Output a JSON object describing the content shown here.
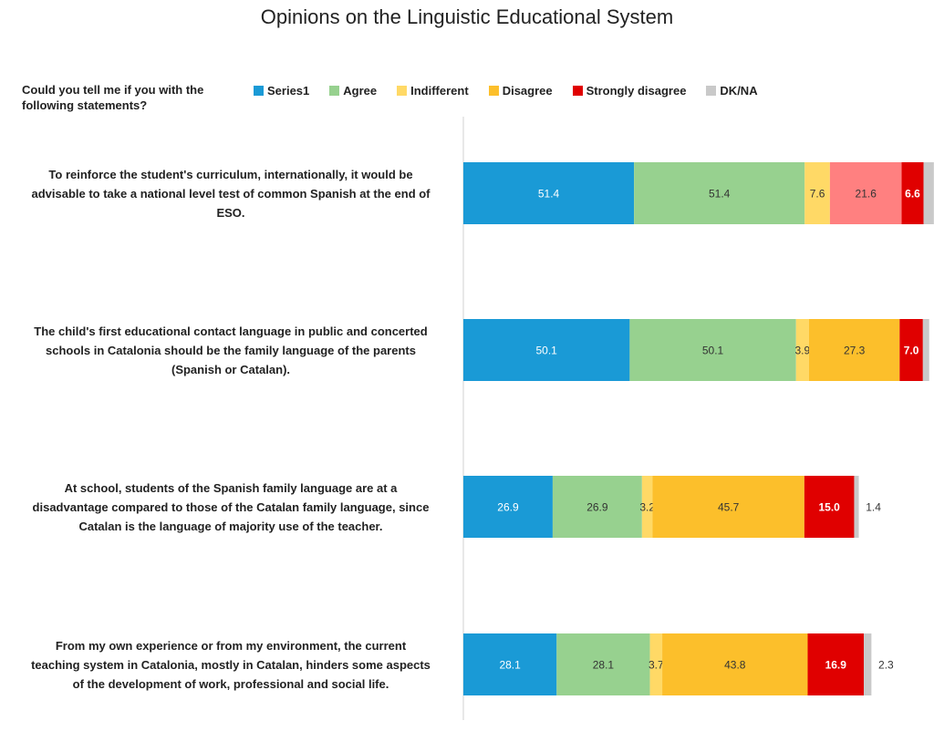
{
  "chart_data": {
    "type": "bar",
    "orientation": "horizontal",
    "stacked": true,
    "title": "Opinions on the Linguistic Educational System",
    "question": "Could you tell me if you with the following statements?",
    "legend_position": "top",
    "categories": [
      "To reinforce the student's curriculum, internationally, it would be advisable to take a national level test of common Spanish at the end of ESO.",
      "The child's first educational contact language in public and concerted schools in Catalonia should be the family language of the parents (Spanish or Catalan).",
      "At school, students of the Spanish family language are at a disadvantage compared to those of the Catalan family language, since Catalan is the language of majority use of the teacher.",
      "From my own experience or from my environment, the current teaching system in Catalonia, mostly in Catalan, hinders some aspects of the development of work, professional and social life."
    ],
    "statement_lines": [
      [
        "To reinforce the student's curriculum, internationally, it would be",
        "advisable to take a national level test of common Spanish at the end of",
        "ESO."
      ],
      [
        "The child's first educational contact language in public and concerted",
        "schools in Catalonia should be the family language of the parents",
        "(Spanish or Catalan)."
      ],
      [
        "At school, students of the Spanish family language are at a",
        "disadvantage compared to those of the Catalan family language, since",
        "Catalan is the language of majority use of the teacher."
      ],
      [
        "From my own experience or from my environment, the current",
        "teaching system in Catalonia, mostly in Catalan, hinders some aspects",
        "of the development of work, professional and social life."
      ]
    ],
    "series": [
      {
        "name": "Series1",
        "color": "#1a9ad6",
        "values": [
          51.4,
          50.1,
          26.9,
          28.1
        ],
        "labels": [
          "51.4",
          "50.1",
          "26.9",
          "28.1"
        ]
      },
      {
        "name": "Agree",
        "color": "#97d18f",
        "values": [
          51.4,
          50.1,
          26.9,
          28.1
        ],
        "labels": [
          "51.4",
          "50.1",
          "26.9",
          "28.1"
        ]
      },
      {
        "name": "Indifferent",
        "color": "#ffd966",
        "values": [
          7.6,
          3.9,
          3.2,
          3.7
        ],
        "labels": [
          "7.6",
          "3.9",
          "3.2",
          "3.7"
        ]
      },
      {
        "name": "Disagree",
        "color": "#fcbf2b",
        "values": [
          21.6,
          27.3,
          45.7,
          43.8
        ],
        "labels": [
          "21.6",
          "27.3",
          "45.7",
          "43.8"
        ],
        "point_colors": [
          "#ff8080",
          null,
          null,
          null
        ]
      },
      {
        "name": "Strongly disagree",
        "color": "#e00000",
        "values": [
          6.6,
          7.0,
          15.0,
          16.9
        ],
        "labels": [
          "6.6",
          "7.0",
          "15.0",
          "16.9"
        ]
      },
      {
        "name": "DK/NA",
        "color": "#c9c9c9",
        "values": [
          3.1,
          1.9,
          1.4,
          2.3
        ],
        "labels": [
          "3.1",
          "1.9",
          "1.4",
          "2.3"
        ]
      }
    ],
    "xlim": [
      0,
      139
    ],
    "grid": false
  }
}
